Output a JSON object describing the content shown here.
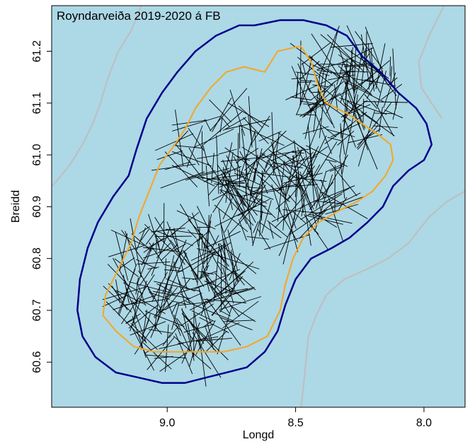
{
  "chart_data": {
    "type": "map-tracks",
    "title": "Royndarveiða 2019-2020 á FB",
    "xlabel": "Longd",
    "ylabel": "Breidd",
    "x_reversed": true,
    "xlim": [
      9.45,
      7.84
    ],
    "ylim": [
      60.513,
      61.288
    ],
    "x_ticks": [
      {
        "value": 9.0,
        "label": "9.0"
      },
      {
        "value": 8.5,
        "label": "8.5"
      },
      {
        "value": 8.0,
        "label": "8.0"
      }
    ],
    "y_ticks": [
      {
        "value": 60.6,
        "label": "60.6"
      },
      {
        "value": 60.7,
        "label": "60.7"
      },
      {
        "value": 60.8,
        "label": "60.8"
      },
      {
        "value": 60.9,
        "label": "60.9"
      },
      {
        "value": 61.0,
        "label": "61.0"
      },
      {
        "value": 61.1,
        "label": "61.1"
      },
      {
        "value": 61.2,
        "label": "61.2"
      }
    ],
    "colors": {
      "sea": "#add8e6",
      "outer_contour": "#00008b",
      "inner_contour": "#f5a623",
      "grey_contour": "#bebebe",
      "tracks": "#000000"
    },
    "outer_contour": [
      [
        8.66,
        61.25
      ],
      [
        8.56,
        61.26
      ],
      [
        8.47,
        61.26
      ],
      [
        8.38,
        61.25
      ],
      [
        8.3,
        61.23
      ],
      [
        8.24,
        61.19
      ],
      [
        8.17,
        61.16
      ],
      [
        8.1,
        61.12
      ],
      [
        8.03,
        61.09
      ],
      [
        7.99,
        61.06
      ],
      [
        7.97,
        61.02
      ],
      [
        8.0,
        60.99
      ],
      [
        8.06,
        60.97
      ],
      [
        8.12,
        60.94
      ],
      [
        8.16,
        60.9
      ],
      [
        8.22,
        60.87
      ],
      [
        8.29,
        60.84
      ],
      [
        8.36,
        60.82
      ],
      [
        8.44,
        60.8
      ],
      [
        8.5,
        60.76
      ],
      [
        8.54,
        60.71
      ],
      [
        8.57,
        60.66
      ],
      [
        8.62,
        60.62
      ],
      [
        8.69,
        60.59
      ],
      [
        8.77,
        60.58
      ],
      [
        8.85,
        60.57
      ],
      [
        8.93,
        60.56
      ],
      [
        9.02,
        60.56
      ],
      [
        9.11,
        60.57
      ],
      [
        9.2,
        60.58
      ],
      [
        9.28,
        60.61
      ],
      [
        9.33,
        60.65
      ],
      [
        9.35,
        60.7
      ],
      [
        9.34,
        60.76
      ],
      [
        9.31,
        60.82
      ],
      [
        9.27,
        60.87
      ],
      [
        9.21,
        60.92
      ],
      [
        9.15,
        60.96
      ],
      [
        9.12,
        61.01
      ],
      [
        9.08,
        61.07
      ],
      [
        9.02,
        61.12
      ],
      [
        8.96,
        61.16
      ],
      [
        8.89,
        61.2
      ],
      [
        8.81,
        61.23
      ],
      [
        8.72,
        61.25
      ],
      [
        8.66,
        61.25
      ]
    ],
    "inner_contour": [
      [
        8.57,
        61.2
      ],
      [
        8.48,
        61.21
      ],
      [
        8.44,
        61.18
      ],
      [
        8.41,
        61.13
      ],
      [
        8.38,
        61.1
      ],
      [
        8.3,
        61.08
      ],
      [
        8.24,
        61.06
      ],
      [
        8.18,
        61.04
      ],
      [
        8.13,
        61.02
      ],
      [
        8.12,
        60.99
      ],
      [
        8.15,
        60.96
      ],
      [
        8.2,
        60.93
      ],
      [
        8.26,
        60.91
      ],
      [
        8.34,
        60.89
      ],
      [
        8.41,
        60.87
      ],
      [
        8.47,
        60.84
      ],
      [
        8.51,
        60.8
      ],
      [
        8.54,
        60.75
      ],
      [
        8.56,
        60.7
      ],
      [
        8.61,
        60.65
      ],
      [
        8.69,
        60.63
      ],
      [
        8.78,
        60.62
      ],
      [
        8.87,
        60.62
      ],
      [
        8.96,
        60.62
      ],
      [
        9.05,
        60.62
      ],
      [
        9.13,
        60.63
      ],
      [
        9.2,
        60.66
      ],
      [
        9.25,
        60.69
      ],
      [
        9.24,
        60.73
      ],
      [
        9.19,
        60.78
      ],
      [
        9.14,
        60.83
      ],
      [
        9.11,
        60.88
      ],
      [
        9.07,
        60.93
      ],
      [
        9.03,
        60.98
      ],
      [
        8.97,
        61.02
      ],
      [
        8.93,
        61.05
      ],
      [
        8.89,
        61.09
      ],
      [
        8.83,
        61.13
      ],
      [
        8.77,
        61.16
      ],
      [
        8.7,
        61.17
      ],
      [
        8.62,
        61.16
      ],
      [
        8.57,
        61.2
      ]
    ],
    "grey_contours": [
      [
        [
          9.1,
          61.29
        ],
        [
          9.14,
          61.24
        ],
        [
          9.19,
          61.2
        ],
        [
          9.23,
          61.15
        ],
        [
          9.26,
          61.1
        ],
        [
          9.29,
          61.06
        ],
        [
          9.33,
          61.02
        ],
        [
          9.38,
          60.98
        ],
        [
          9.43,
          60.95
        ],
        [
          9.45,
          60.94
        ]
      ],
      [
        [
          7.92,
          61.29
        ],
        [
          7.98,
          61.23
        ],
        [
          8.02,
          61.18
        ],
        [
          8.01,
          61.13
        ],
        [
          7.97,
          61.1
        ],
        [
          7.93,
          61.07
        ]
      ],
      [
        [
          7.84,
          60.93
        ],
        [
          7.91,
          60.91
        ],
        [
          7.98,
          60.88
        ],
        [
          8.06,
          60.83
        ],
        [
          8.14,
          60.8
        ],
        [
          8.22,
          60.78
        ],
        [
          8.31,
          60.76
        ],
        [
          8.38,
          60.73
        ],
        [
          8.42,
          60.69
        ],
        [
          8.45,
          60.65
        ],
        [
          8.46,
          60.6
        ],
        [
          8.47,
          60.55
        ],
        [
          8.48,
          60.51
        ]
      ]
    ]
  }
}
